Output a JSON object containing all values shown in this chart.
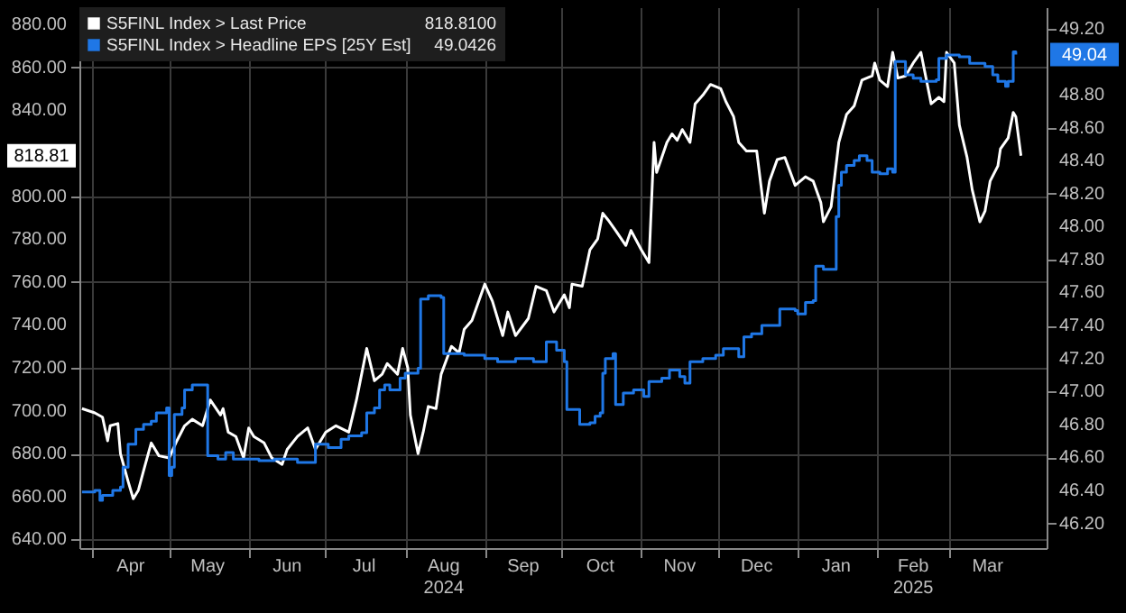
{
  "chart_data": {
    "type": "line",
    "series": [
      {
        "name": "S5FINL Index > Last Price",
        "color": "#ffffff",
        "type": "line",
        "axis": "y",
        "x": [
          "2024-03-28",
          "2024-04-02",
          "2024-04-05",
          "2024-04-07",
          "2024-04-08",
          "2024-04-11",
          "2024-04-12",
          "2024-04-15",
          "2024-04-17",
          "2024-04-19",
          "2024-04-21",
          "2024-04-24",
          "2024-04-27",
          "2024-05-01",
          "2024-05-04",
          "2024-05-07",
          "2024-05-10",
          "2024-05-14",
          "2024-05-17",
          "2024-05-21",
          "2024-05-22",
          "2024-05-24",
          "2024-05-27",
          "2024-05-30",
          "2024-06-01",
          "2024-06-03",
          "2024-06-07",
          "2024-06-10",
          "2024-06-14",
          "2024-06-16",
          "2024-06-20",
          "2024-06-24",
          "2024-06-27",
          "2024-07-01",
          "2024-07-05",
          "2024-07-10",
          "2024-07-13",
          "2024-07-15",
          "2024-07-17",
          "2024-07-20",
          "2024-07-23",
          "2024-07-25",
          "2024-07-29",
          "2024-07-31",
          "2024-08-02",
          "2024-08-03",
          "2024-08-06",
          "2024-08-08",
          "2024-08-10",
          "2024-08-13",
          "2024-08-15",
          "2024-08-19",
          "2024-08-22",
          "2024-08-24",
          "2024-08-27",
          "2024-09-01",
          "2024-09-04",
          "2024-09-08",
          "2024-09-10",
          "2024-09-13",
          "2024-09-18",
          "2024-09-21",
          "2024-09-25",
          "2024-09-28",
          "2024-10-02",
          "2024-10-04",
          "2024-10-05",
          "2024-10-09",
          "2024-10-12",
          "2024-10-15",
          "2024-10-17",
          "2024-10-19",
          "2024-10-22",
          "2024-10-26",
          "2024-10-28",
          "2024-11-01",
          "2024-11-04",
          "2024-11-06",
          "2024-11-07",
          "2024-11-11",
          "2024-11-13",
          "2024-11-15",
          "2024-11-17",
          "2024-11-20",
          "2024-11-22",
          "2024-11-25",
          "2024-11-28",
          "2024-12-02",
          "2024-12-04",
          "2024-12-07",
          "2024-12-09",
          "2024-12-12",
          "2024-12-16",
          "2024-12-19",
          "2024-12-21",
          "2024-12-24",
          "2024-12-27",
          "2024-12-31",
          "2025-01-04",
          "2025-01-07",
          "2025-01-10",
          "2025-01-11",
          "2025-01-14",
          "2025-01-17",
          "2025-01-20",
          "2025-01-23",
          "2025-01-26",
          "2025-01-30",
          "2025-01-31",
          "2025-02-02",
          "2025-02-05",
          "2025-02-07",
          "2025-02-09",
          "2025-02-12",
          "2025-02-15",
          "2025-02-18",
          "2025-02-22",
          "2025-02-25",
          "2025-02-27",
          "2025-02-28",
          "2025-03-03",
          "2025-03-05",
          "2025-03-08",
          "2025-03-10",
          "2025-03-13",
          "2025-03-15",
          "2025-03-17",
          "2025-03-20",
          "2025-03-21",
          "2025-03-24",
          "2025-03-26",
          "2025-03-27",
          "2025-03-29"
        ],
        "values": [
          701,
          699,
          697,
          686,
          693,
          694,
          680,
          667,
          659,
          663,
          672,
          685,
          679,
          678,
          686,
          693,
          696,
          693,
          705,
          698,
          701,
          690,
          688,
          678,
          692,
          688,
          685,
          678,
          675,
          682,
          688,
          692,
          682,
          690,
          693,
          690,
          705,
          717,
          729,
          714,
          717,
          722,
          717,
          729,
          720,
          698,
          680,
          690,
          702,
          701,
          717,
          730,
          727,
          738,
          742,
          759,
          751,
          735,
          746,
          735,
          743,
          758,
          756,
          746,
          754,
          748,
          759,
          758,
          775,
          780,
          792,
          789,
          784,
          777,
          784,
          775,
          769,
          825,
          811,
          825,
          829,
          826,
          831,
          825,
          843,
          847,
          852,
          850,
          844,
          837,
          825,
          821,
          821,
          792,
          807,
          817,
          818,
          805,
          809,
          807,
          797,
          788,
          795,
          825,
          838,
          842,
          854,
          856,
          862,
          854,
          851,
          867,
          855,
          856,
          862,
          867,
          843,
          846,
          844,
          867,
          862,
          833,
          818,
          803,
          788,
          793,
          807,
          814,
          822,
          827,
          839,
          837,
          818.81
        ]
      },
      {
        "name": "S5FINL Index > Headline EPS [25Y Est]",
        "color": "#1f77e6",
        "type": "step",
        "axis": "y2",
        "x": [
          "2024-03-28",
          "2024-04-02",
          "2024-04-04",
          "2024-04-05",
          "2024-04-09",
          "2024-04-12",
          "2024-04-13",
          "2024-04-15",
          "2024-04-18",
          "2024-04-21",
          "2024-04-24",
          "2024-04-26",
          "2024-04-30",
          "2024-05-01",
          "2024-05-02",
          "2024-05-03",
          "2024-05-06",
          "2024-05-07",
          "2024-05-10",
          "2024-05-15",
          "2024-05-16",
          "2024-05-20",
          "2024-05-23",
          "2024-05-26",
          "2024-06-05",
          "2024-06-11",
          "2024-06-20",
          "2024-06-26",
          "2024-06-27",
          "2024-07-02",
          "2024-07-07",
          "2024-07-10",
          "2024-07-15",
          "2024-07-17",
          "2024-07-20",
          "2024-07-22",
          "2024-07-24",
          "2024-07-26",
          "2024-07-30",
          "2024-08-01",
          "2024-08-05",
          "2024-08-06",
          "2024-08-07",
          "2024-08-10",
          "2024-08-15",
          "2024-08-16",
          "2024-08-24",
          "2024-09-01",
          "2024-09-06",
          "2024-09-13",
          "2024-09-20",
          "2024-09-25",
          "2024-09-29",
          "2024-10-02",
          "2024-10-03",
          "2024-10-07",
          "2024-10-08",
          "2024-10-12",
          "2024-10-14",
          "2024-10-16",
          "2024-10-17",
          "2024-10-18",
          "2024-10-21",
          "2024-10-22",
          "2024-10-25",
          "2024-10-29",
          "2024-11-02",
          "2024-11-04",
          "2024-11-09",
          "2024-11-12",
          "2024-11-16",
          "2024-11-18",
          "2024-11-20",
          "2024-11-25",
          "2024-11-30",
          "2024-12-03",
          "2024-12-09",
          "2024-12-11",
          "2024-12-14",
          "2024-12-18",
          "2024-12-24",
          "2024-12-25",
          "2024-12-31",
          "2025-01-01",
          "2025-01-04",
          "2025-01-07",
          "2025-01-08",
          "2025-01-11",
          "2025-01-15",
          "2025-01-16",
          "2025-01-17",
          "2025-01-18",
          "2025-01-20",
          "2025-01-23",
          "2025-01-25",
          "2025-01-28",
          "2025-01-30",
          "2025-02-02",
          "2025-02-05",
          "2025-02-07",
          "2025-02-08",
          "2025-02-11",
          "2025-02-12",
          "2025-02-15",
          "2025-02-18",
          "2025-02-21",
          "2025-02-24",
          "2025-02-25",
          "2025-02-28",
          "2025-03-05",
          "2025-03-09",
          "2025-03-15",
          "2025-03-18",
          "2025-03-20",
          "2025-03-23",
          "2025-03-24",
          "2025-03-26",
          "2025-03-27"
        ],
        "values": [
          46.39,
          46.4,
          46.34,
          46.37,
          46.4,
          46.42,
          46.54,
          46.68,
          46.77,
          46.8,
          46.82,
          46.87,
          46.9,
          46.49,
          46.54,
          46.86,
          46.9,
          47.01,
          47.04,
          47.04,
          46.61,
          46.59,
          46.63,
          46.59,
          46.58,
          46.59,
          46.57,
          46.57,
          46.68,
          46.66,
          46.71,
          46.73,
          46.75,
          46.87,
          46.9,
          47.01,
          47.04,
          47.01,
          47.08,
          47.11,
          47.11,
          47.14,
          47.56,
          47.58,
          47.57,
          47.23,
          47.22,
          47.2,
          47.18,
          47.2,
          47.18,
          47.3,
          47.25,
          47.18,
          46.89,
          46.89,
          46.8,
          46.81,
          46.85,
          46.87,
          47.11,
          47.2,
          47.23,
          46.92,
          46.99,
          47.01,
          46.97,
          47.06,
          47.08,
          47.13,
          47.09,
          47.05,
          47.18,
          47.2,
          47.22,
          47.26,
          47.21,
          47.33,
          47.35,
          47.4,
          47.4,
          47.5,
          47.49,
          47.47,
          47.54,
          47.55,
          47.76,
          47.74,
          47.74,
          48.06,
          48.25,
          48.33,
          48.37,
          48.4,
          48.43,
          48.4,
          48.33,
          48.32,
          48.35,
          48.33,
          49.0,
          49.0,
          48.92,
          48.9,
          48.88,
          48.88,
          48.89,
          49.02,
          49.04,
          49.03,
          48.99,
          48.97,
          48.92,
          48.88,
          48.85,
          48.88,
          49.06,
          49.0426
        ]
      }
    ],
    "xlim": [
      "2024-03-27",
      "2025-04-08"
    ],
    "xticks": [
      {
        "value": "2024-04-01",
        "label": null
      },
      {
        "value": "2024-04-16",
        "label": "Apr"
      },
      {
        "value": "2024-05-01",
        "label": null
      },
      {
        "value": "2024-05-16",
        "label": "May"
      },
      {
        "value": "2024-06-01",
        "label": null
      },
      {
        "value": "2024-06-16",
        "label": "Jun"
      },
      {
        "value": "2024-07-01",
        "label": null
      },
      {
        "value": "2024-07-16",
        "label": "Jul"
      },
      {
        "value": "2024-08-01",
        "label": null
      },
      {
        "value": "2024-08-16",
        "label": "Aug\n2024"
      },
      {
        "value": "2024-09-01",
        "label": null
      },
      {
        "value": "2024-09-16",
        "label": "Sep"
      },
      {
        "value": "2024-10-01",
        "label": null
      },
      {
        "value": "2024-10-16",
        "label": "Oct"
      },
      {
        "value": "2024-11-01",
        "label": null
      },
      {
        "value": "2024-11-16",
        "label": "Nov"
      },
      {
        "value": "2024-12-01",
        "label": null
      },
      {
        "value": "2024-12-16",
        "label": "Dec"
      },
      {
        "value": "2025-01-01",
        "label": null
      },
      {
        "value": "2025-01-16",
        "label": "Jan"
      },
      {
        "value": "2025-02-01",
        "label": null
      },
      {
        "value": "2025-02-15",
        "label": "Feb\n2025"
      },
      {
        "value": "2025-03-01",
        "label": null
      },
      {
        "value": "2025-03-16",
        "label": "Mar"
      }
    ],
    "ylim": [
      636,
      888
    ],
    "yticks": [
      {
        "value": 640,
        "label": "640.00"
      },
      {
        "value": 660,
        "label": "660.00"
      },
      {
        "value": 680,
        "label": "680.00"
      },
      {
        "value": 700,
        "label": "700.00"
      },
      {
        "value": 720,
        "label": "720.00"
      },
      {
        "value": 740,
        "label": "740.00"
      },
      {
        "value": 760,
        "label": "760.00"
      },
      {
        "value": 780,
        "label": "780.00"
      },
      {
        "value": 800,
        "label": "800.00"
      },
      {
        "value": 840,
        "label": "840.00"
      },
      {
        "value": 860,
        "label": "860.00"
      },
      {
        "value": 880,
        "label": "880.00"
      }
    ],
    "y2lim": [
      46.05,
      49.33
    ],
    "y2ticks": [
      {
        "value": 46.2,
        "label": "46.20"
      },
      {
        "value": 46.4,
        "label": "46.40"
      },
      {
        "value": 46.6,
        "label": "46.60"
      },
      {
        "value": 46.8,
        "label": "46.80"
      },
      {
        "value": 47.0,
        "label": "47.00"
      },
      {
        "value": 47.2,
        "label": "47.20"
      },
      {
        "value": 47.4,
        "label": "47.40"
      },
      {
        "value": 47.6,
        "label": "47.60"
      },
      {
        "value": 47.8,
        "label": "47.80"
      },
      {
        "value": 48.0,
        "label": "48.00"
      },
      {
        "value": 48.2,
        "label": "48.20"
      },
      {
        "value": 48.4,
        "label": "48.40"
      },
      {
        "value": 48.6,
        "label": "48.60"
      },
      {
        "value": 48.8,
        "label": "48.80"
      },
      {
        "value": 49.2,
        "label": "49.20"
      }
    ],
    "annotations": [
      "818.8100",
      "49.0426",
      "818.81",
      "49.04"
    ],
    "grid": true,
    "legend": "top left"
  }
}
